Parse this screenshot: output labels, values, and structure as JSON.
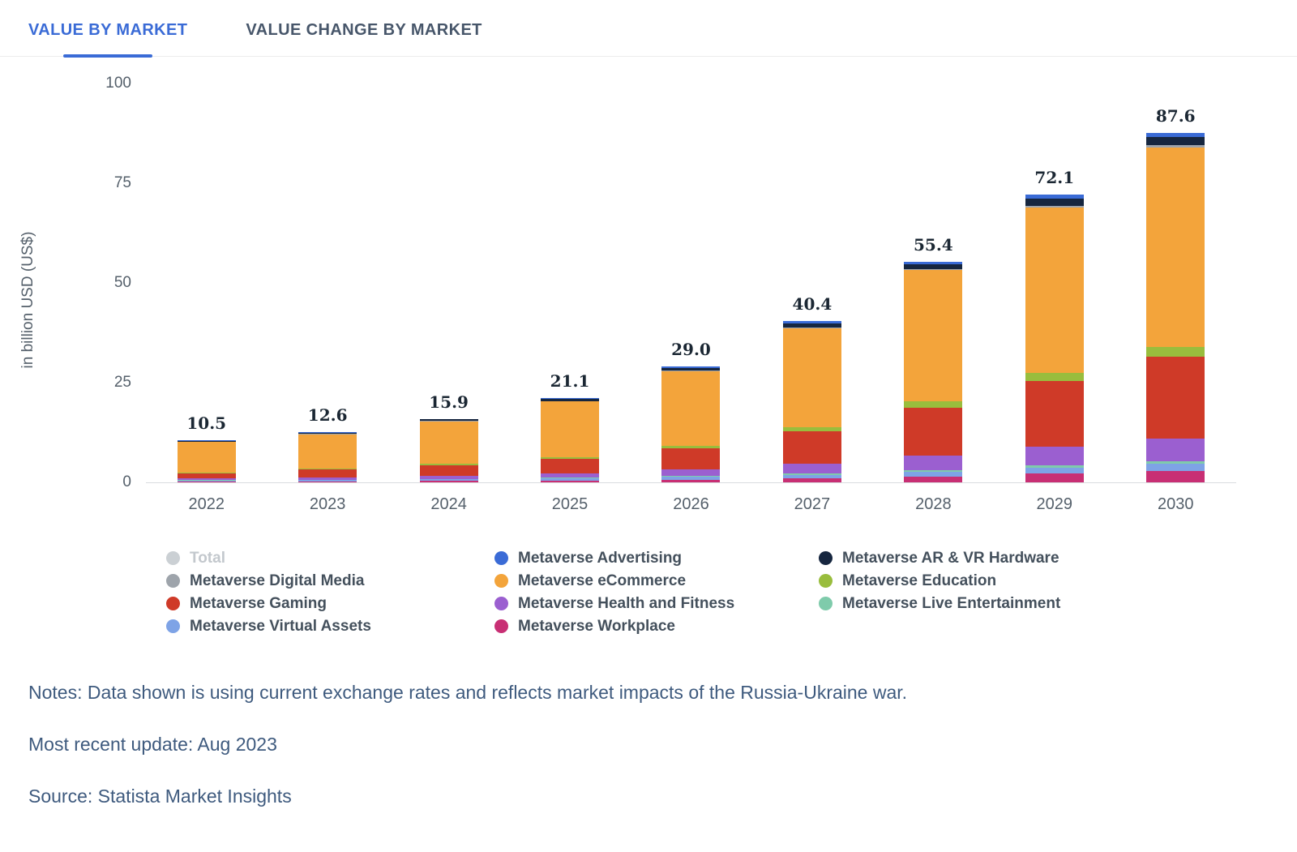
{
  "tabs": [
    {
      "label": "VALUE BY MARKET",
      "active": true
    },
    {
      "label": "VALUE CHANGE BY MARKET",
      "active": false
    }
  ],
  "chart_data": {
    "type": "bar",
    "stacked": true,
    "title": "",
    "xlabel": "",
    "ylabel": "in billion USD (US$)",
    "ylim": [
      0,
      100
    ],
    "yticks": [
      0,
      25,
      50,
      75,
      100
    ],
    "grid": false,
    "legend_position": "bottom",
    "categories": [
      "2022",
      "2023",
      "2024",
      "2025",
      "2026",
      "2027",
      "2028",
      "2029",
      "2030"
    ],
    "totals": [
      10.5,
      12.6,
      15.9,
      21.1,
      29.0,
      40.4,
      55.4,
      72.1,
      87.6
    ],
    "series": [
      {
        "name": "Metaverse Workplace",
        "color": "#c82f74",
        "values": [
          0.2,
          0.3,
          0.4,
          0.5,
          0.7,
          1.0,
          1.5,
          2.2,
          2.9
        ]
      },
      {
        "name": "Metaverse Virtual Assets",
        "color": "#7ea3e6",
        "values": [
          0.3,
          0.3,
          0.4,
          0.5,
          0.7,
          0.9,
          1.2,
          1.5,
          1.8
        ]
      },
      {
        "name": "Metaverse Live Entertainment",
        "color": "#7fcbab",
        "values": [
          0.1,
          0.1,
          0.1,
          0.2,
          0.2,
          0.3,
          0.4,
          0.5,
          0.6
        ]
      },
      {
        "name": "Metaverse Health and Fitness",
        "color": "#9b5fd0",
        "values": [
          0.4,
          0.5,
          0.7,
          1.0,
          1.6,
          2.5,
          3.7,
          4.7,
          5.7
        ]
      },
      {
        "name": "Metaverse Gaming",
        "color": "#cf3a28",
        "values": [
          1.3,
          2.0,
          2.6,
          3.7,
          5.3,
          8.2,
          12.0,
          16.5,
          20.5
        ]
      },
      {
        "name": "Metaverse Education",
        "color": "#99bd3d",
        "values": [
          0.2,
          0.3,
          0.4,
          0.5,
          0.7,
          1.0,
          1.5,
          2.0,
          2.5
        ]
      },
      {
        "name": "Metaverse eCommerce",
        "color": "#f3a43b",
        "values": [
          7.6,
          8.6,
          10.7,
          13.9,
          18.7,
          24.8,
          32.9,
          41.6,
          50.0
        ]
      },
      {
        "name": "Metaverse Digital Media",
        "color": "#9ea4ab",
        "values": [
          0.1,
          0.1,
          0.1,
          0.1,
          0.2,
          0.2,
          0.3,
          0.4,
          0.5
        ]
      },
      {
        "name": "Metaverse AR & VR Hardware",
        "color": "#16263f",
        "values": [
          0.2,
          0.3,
          0.4,
          0.5,
          0.6,
          0.9,
          1.2,
          1.8,
          2.0
        ]
      },
      {
        "name": "Metaverse Advertising",
        "color": "#3a6bd6",
        "values": [
          0.1,
          0.1,
          0.1,
          0.2,
          0.3,
          0.6,
          0.7,
          0.9,
          1.1
        ]
      }
    ]
  },
  "legend": {
    "items": [
      {
        "label": "Total",
        "color": "#cbd0d4",
        "muted": true
      },
      {
        "label": "Metaverse Advertising",
        "color": "#3a6bd6",
        "muted": false
      },
      {
        "label": "Metaverse AR & VR Hardware",
        "color": "#16263f",
        "muted": false
      },
      {
        "label": "Metaverse Digital Media",
        "color": "#9ea4ab",
        "muted": false
      },
      {
        "label": "Metaverse eCommerce",
        "color": "#f3a43b",
        "muted": false
      },
      {
        "label": "Metaverse Education",
        "color": "#99bd3d",
        "muted": false
      },
      {
        "label": "Metaverse Gaming",
        "color": "#cf3a28",
        "muted": false
      },
      {
        "label": "Metaverse Health and Fitness",
        "color": "#9b5fd0",
        "muted": false
      },
      {
        "label": "Metaverse Live Entertainment",
        "color": "#7fcbab",
        "muted": false
      },
      {
        "label": "Metaverse Virtual Assets",
        "color": "#7ea3e6",
        "muted": false
      },
      {
        "label": "Metaverse Workplace",
        "color": "#c82f74",
        "muted": false
      }
    ]
  },
  "footer": {
    "notes": "Notes: Data shown is using current exchange rates and reflects market impacts of the Russia-Ukraine war.",
    "update": "Most recent update: Aug 2023",
    "source": "Source: Statista Market Insights"
  }
}
